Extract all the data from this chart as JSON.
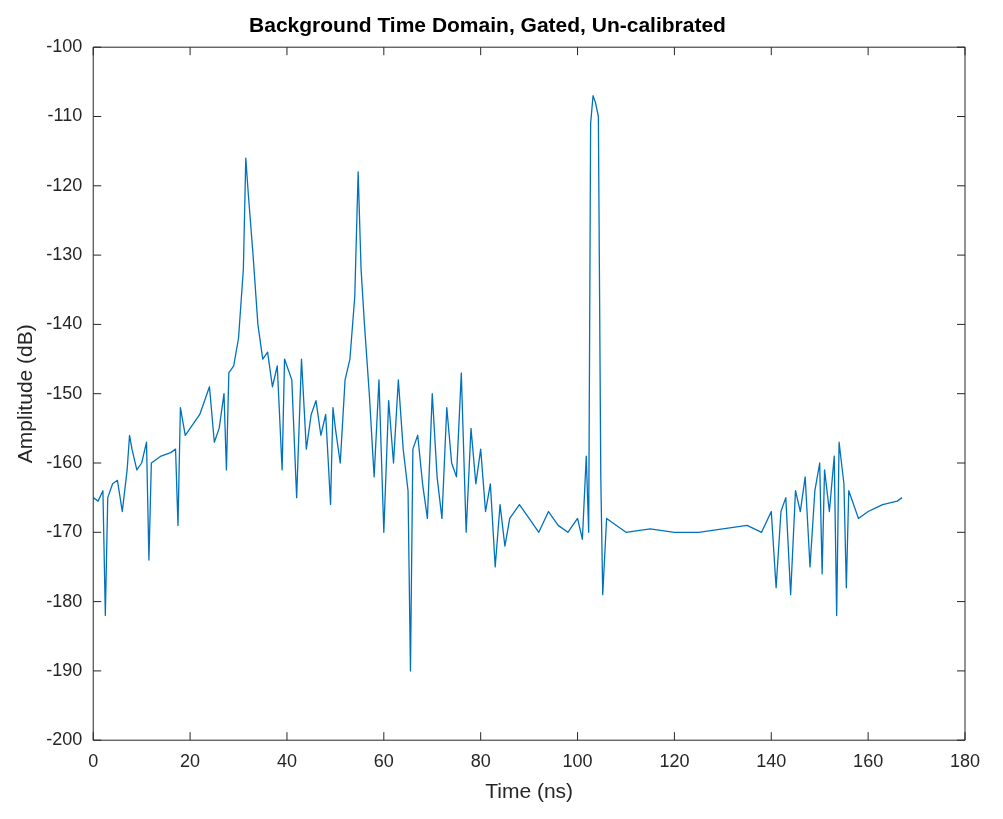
{
  "chart_data": {
    "type": "line",
    "title": "Background Time Domain, Gated, Un-calibrated",
    "xlabel": "Time (ns)",
    "ylabel": "Amplitude (dB)",
    "xlim": [
      0,
      180
    ],
    "xticks": [
      0,
      20,
      40,
      60,
      80,
      100,
      120,
      140,
      160,
      180
    ],
    "ylim": [
      -200,
      -100
    ],
    "yticks": [
      -200,
      -190,
      -180,
      -170,
      -160,
      -150,
      -140,
      -130,
      -120,
      -110,
      -100
    ],
    "series": [
      {
        "color": "#0072bd",
        "x": [
          0,
          1,
          2,
          2.5,
          3,
          4,
          5,
          6,
          7,
          7.5,
          8,
          9,
          10,
          11,
          11.5,
          12,
          14,
          16,
          17,
          17.5,
          18,
          19,
          22,
          24,
          25,
          26,
          27,
          27.5,
          28,
          29,
          30,
          31,
          31.5,
          32,
          33,
          34,
          35,
          36,
          37,
          38,
          39,
          39.5,
          41,
          42,
          43,
          44,
          45,
          46,
          47,
          48,
          49,
          49.5,
          50,
          51,
          52,
          53,
          54,
          54.7,
          55.3,
          56,
          57,
          58,
          59,
          60,
          61,
          62,
          63,
          64,
          65,
          65.5,
          66,
          67,
          68,
          69,
          70,
          71,
          72,
          73,
          74,
          75,
          76,
          77,
          78,
          79,
          80,
          81,
          82,
          83,
          84,
          85,
          86,
          88,
          90,
          92,
          94,
          96,
          98,
          100,
          101,
          101.8,
          102.3,
          102.7,
          103.2,
          103.7,
          104.3,
          104.8,
          105.2,
          106,
          110,
          115,
          120,
          125,
          130,
          135,
          138,
          140,
          141,
          142,
          143,
          144,
          145,
          146,
          147,
          148,
          149,
          150,
          150.5,
          151,
          152,
          153,
          153.5,
          154,
          155,
          155.5,
          156,
          158,
          160,
          163,
          166,
          167
        ],
        "values": [
          -165,
          -165.5,
          -164,
          -182,
          -165,
          -163,
          -162.5,
          -167,
          -161,
          -156,
          -158,
          -161,
          -160,
          -157,
          -174,
          -160,
          -159,
          -158.5,
          -158,
          -169,
          -152,
          -156,
          -153,
          -149,
          -157,
          -155,
          -150,
          -161,
          -147,
          -146,
          -142,
          -132,
          -116,
          -121,
          -130,
          -140,
          -145,
          -144,
          -149,
          -146,
          -161,
          -145,
          -148,
          -165,
          -145,
          -158,
          -153,
          -151,
          -156,
          -153,
          -166,
          -152,
          -155,
          -160,
          -148,
          -145,
          -136,
          -118,
          -132,
          -140,
          -150,
          -162,
          -148,
          -170,
          -151,
          -160,
          -148,
          -158,
          -164,
          -190,
          -158,
          -156,
          -163,
          -168,
          -150,
          -162,
          -168,
          -152,
          -160,
          -162,
          -147,
          -170,
          -155,
          -163,
          -158,
          -167,
          -163,
          -175,
          -166,
          -172,
          -168,
          -166,
          -168,
          -170,
          -167,
          -169,
          -170,
          -168,
          -171,
          -159,
          -170,
          -111,
          -107,
          -108,
          -110,
          -162,
          -179,
          -168,
          -170,
          -169.5,
          -170,
          -170,
          -169.5,
          -169,
          -170,
          -167,
          -178,
          -167,
          -165,
          -179,
          -164,
          -167,
          -162,
          -175,
          -164,
          -160,
          -176,
          -161,
          -167,
          -159,
          -182,
          -157,
          -163,
          -178,
          -164,
          -168,
          -167,
          -166,
          -165.5,
          -165
        ]
      }
    ]
  }
}
